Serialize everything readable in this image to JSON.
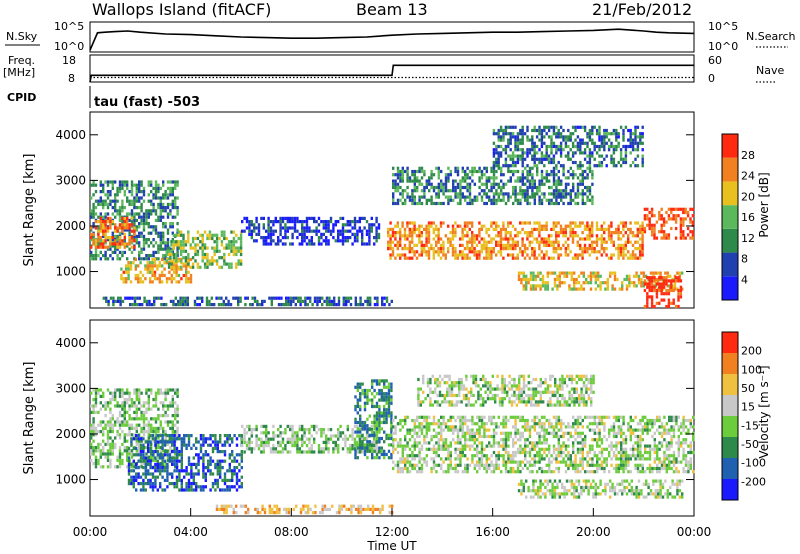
{
  "header": {
    "station": "Wallops Island (fitACF)",
    "beam": "Beam 13",
    "date": "21/Feb/2012"
  },
  "chart_data": [
    {
      "type": "line",
      "panel": "noise",
      "left_label": "N.Sky",
      "right_label": "N.Search",
      "left_ticks": [
        "10^5",
        "10^0"
      ],
      "right_ticks": [
        "10^5",
        "10^0"
      ],
      "series": [
        {
          "name": "N.Sky",
          "style": "solid",
          "x_hours": [
            0,
            0.3,
            0.6,
            1,
            1.5,
            2,
            3,
            4,
            5,
            6,
            7,
            8,
            9,
            10,
            11,
            12,
            13,
            14,
            15,
            16,
            17,
            18,
            19,
            20,
            21,
            22,
            22.5,
            23,
            24
          ],
          "values_log10": [
            0.3,
            3.2,
            3.3,
            3.4,
            3.5,
            3.3,
            3.0,
            2.9,
            2.7,
            2.5,
            2.4,
            2.3,
            2.3,
            2.4,
            2.5,
            2.8,
            3.0,
            3.1,
            3.2,
            3.3,
            3.3,
            3.4,
            3.5,
            3.6,
            3.8,
            3.5,
            3.3,
            3.2,
            3.1
          ]
        },
        {
          "name": "N.Search",
          "style": "dotted",
          "x_hours": [],
          "values_log10": []
        }
      ]
    },
    {
      "type": "line",
      "panel": "frequency",
      "left_label": "Freq.",
      "left_unit": "[MHz]",
      "right_label": "Nave",
      "left_ticks": [
        "18",
        "8"
      ],
      "right_ticks": [
        "60",
        "0"
      ],
      "series": [
        {
          "name": "Freq.",
          "style": "solid",
          "x_hours": [
            0,
            0.05,
            0.3,
            12,
            12.05,
            24
          ],
          "values_mhz": [
            8,
            10.5,
            10.5,
            10.5,
            14.2,
            14.2
          ]
        },
        {
          "name": "Nave",
          "style": "dotted",
          "x_hours": [
            0,
            24
          ],
          "values": [
            10,
            10
          ]
        }
      ]
    },
    {
      "type": "table",
      "panel": "cpid",
      "label": "CPID",
      "value": "tau (fast) -503"
    },
    {
      "type": "heatmap",
      "panel": "power",
      "ylabel": "Slant Range [km]",
      "colorbar_label": "Power [dB]",
      "ylim": [
        200,
        4500
      ],
      "yticks": [
        1000,
        2000,
        3000,
        4000
      ],
      "colorbar_ticks": [
        "28",
        "24",
        "20",
        "16",
        "12",
        "8",
        "4"
      ],
      "colors": [
        "#1a1aff",
        "#2040b0",
        "#2e8a4a",
        "#5cb85c",
        "#e8c020",
        "#f08020",
        "#ff2a10"
      ],
      "regions": [
        {
          "x": [
            0.0,
            3.5
          ],
          "y": [
            1300,
            3000
          ],
          "level": 0.35
        },
        {
          "x": [
            0.0,
            1.8
          ],
          "y": [
            1500,
            2200
          ],
          "level": 0.8
        },
        {
          "x": [
            1.2,
            4.0
          ],
          "y": [
            800,
            1300
          ],
          "level": 0.7
        },
        {
          "x": [
            3.0,
            6.0
          ],
          "y": [
            1100,
            1900
          ],
          "level": 0.5
        },
        {
          "x": [
            6.0,
            11.5
          ],
          "y": [
            1600,
            2200
          ],
          "level": 0.15
        },
        {
          "x": [
            11.8,
            22.0
          ],
          "y": [
            1300,
            2100
          ],
          "level": 0.75
        },
        {
          "x": [
            12.0,
            20.0
          ],
          "y": [
            2500,
            3300
          ],
          "level": 0.35
        },
        {
          "x": [
            17.0,
            23.5
          ],
          "y": [
            600,
            1000
          ],
          "level": 0.65
        },
        {
          "x": [
            22.0,
            24.0
          ],
          "y": [
            1700,
            2400
          ],
          "level": 0.9
        },
        {
          "x": [
            22.0,
            23.5
          ],
          "y": [
            250,
            900
          ],
          "level": 0.95
        },
        {
          "x": [
            16.0,
            22.0
          ],
          "y": [
            3300,
            4200
          ],
          "level": 0.3
        },
        {
          "x": [
            0.5,
            12.0
          ],
          "y": [
            250,
            450
          ],
          "level": 0.25
        }
      ]
    },
    {
      "type": "heatmap",
      "panel": "velocity",
      "ylabel": "Slant Range [km]",
      "xlabel": "Time UT",
      "colorbar_label": "Velocity [m s⁻¹]",
      "ylim": [
        200,
        4500
      ],
      "yticks": [
        1000,
        2000,
        3000,
        4000
      ],
      "xticks": [
        "00:00",
        "04:00",
        "08:00",
        "12:00",
        "16:00",
        "20:00",
        "00:00"
      ],
      "xlim_hours": [
        0,
        24
      ],
      "colorbar_ticks": [
        "200",
        "100",
        "50",
        "15",
        "-15",
        "-50",
        "-100",
        "-200"
      ],
      "colors": [
        "#1a1aff",
        "#2060b0",
        "#2e8a4a",
        "#6ccc3c",
        "#c8c8c8",
        "#f0c040",
        "#f08020",
        "#ff2a10"
      ],
      "regions": [
        {
          "x": [
            0.0,
            3.5
          ],
          "y": [
            1300,
            3000
          ],
          "level": 0.45
        },
        {
          "x": [
            1.5,
            6.0
          ],
          "y": [
            800,
            2000
          ],
          "level": 0.2
        },
        {
          "x": [
            6.0,
            11.5
          ],
          "y": [
            1600,
            2200
          ],
          "level": 0.45
        },
        {
          "x": [
            10.5,
            12.0
          ],
          "y": [
            1500,
            3200
          ],
          "level": 0.3
        },
        {
          "x": [
            12.0,
            24.0
          ],
          "y": [
            1200,
            2400
          ],
          "level": 0.5
        },
        {
          "x": [
            13.0,
            20.0
          ],
          "y": [
            2600,
            3300
          ],
          "level": 0.5
        },
        {
          "x": [
            17.0,
            23.5
          ],
          "y": [
            600,
            1000
          ],
          "level": 0.5
        },
        {
          "x": [
            5.0,
            12.0
          ],
          "y": [
            250,
            450
          ],
          "level": 0.7
        }
      ]
    }
  ]
}
